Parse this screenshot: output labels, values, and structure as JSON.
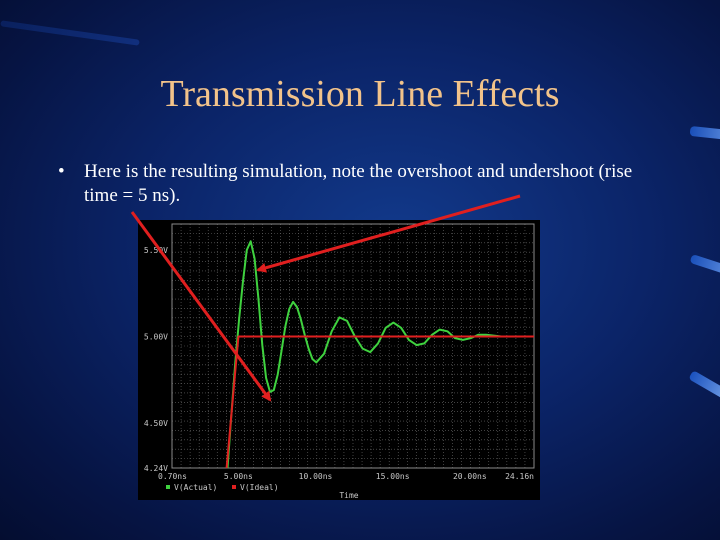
{
  "slide": {
    "title": "Transmission Line Effects",
    "bullet_symbol": "•",
    "bullet_text": "Here is the resulting simulation, note the overshoot and undershoot (rise time = 5 ns)."
  },
  "colors": {
    "title": "#f2c38a",
    "bullet": "#ffffff",
    "annotation": "#e01f1f",
    "actual": "#3fd23f",
    "ideal": "#e02020",
    "plot_bg": "#000000",
    "grid": "#6b6b6b",
    "axis_text": "#c8c8c8"
  },
  "chart_data": {
    "type": "line",
    "xlabel": "Time",
    "ylabel": "",
    "xlim": [
      0.7,
      24.16
    ],
    "ylim": [
      4.24,
      5.65
    ],
    "x_tick_labels": [
      "0.70ns",
      "5.00ns",
      "10.00ns",
      "15.00ns",
      "20.00ns",
      "24.16n"
    ],
    "x_tick_values": [
      0.7,
      5.0,
      10.0,
      15.0,
      20.0,
      24.16
    ],
    "y_tick_labels": [
      "5.50V",
      "5.00V",
      "4.50V",
      "4.24V"
    ],
    "y_tick_values": [
      5.5,
      5.0,
      4.5,
      4.24
    ],
    "grid": true,
    "legend": [
      "V(Actual)",
      "V(Ideal)"
    ],
    "legend_placement": "bottom-left",
    "series": [
      {
        "name": "V(Actual)",
        "x": [
          4.3,
          4.55,
          4.8,
          5.05,
          5.3,
          5.55,
          5.8,
          6.05,
          6.3,
          6.55,
          6.8,
          7.05,
          7.3,
          7.55,
          7.8,
          8.05,
          8.3,
          8.55,
          8.8,
          9.05,
          9.3,
          9.55,
          9.8,
          10.05,
          10.55,
          11.05,
          11.55,
          12.05,
          12.55,
          13.05,
          13.55,
          14.05,
          14.55,
          15.05,
          15.55,
          16.05,
          16.55,
          17.05,
          17.55,
          18.05,
          18.55,
          19.05,
          19.55,
          20.05,
          20.55,
          21.05,
          22.05,
          23.05,
          24.16
        ],
        "y": [
          4.24,
          4.55,
          4.85,
          5.1,
          5.32,
          5.5,
          5.55,
          5.45,
          5.22,
          4.95,
          4.76,
          4.68,
          4.69,
          4.78,
          4.92,
          5.06,
          5.16,
          5.2,
          5.17,
          5.1,
          5.01,
          4.93,
          4.87,
          4.85,
          4.9,
          5.03,
          5.11,
          5.09,
          5.0,
          4.93,
          4.91,
          4.96,
          5.05,
          5.08,
          5.05,
          4.98,
          4.95,
          4.96,
          5.01,
          5.04,
          5.03,
          4.99,
          4.98,
          4.99,
          5.01,
          5.01,
          5.0,
          5.0,
          5.0
        ]
      },
      {
        "name": "V(Ideal)",
        "x": [
          4.24,
          5.0,
          24.16
        ],
        "y": [
          4.24,
          5.0,
          5.0
        ]
      }
    ]
  }
}
